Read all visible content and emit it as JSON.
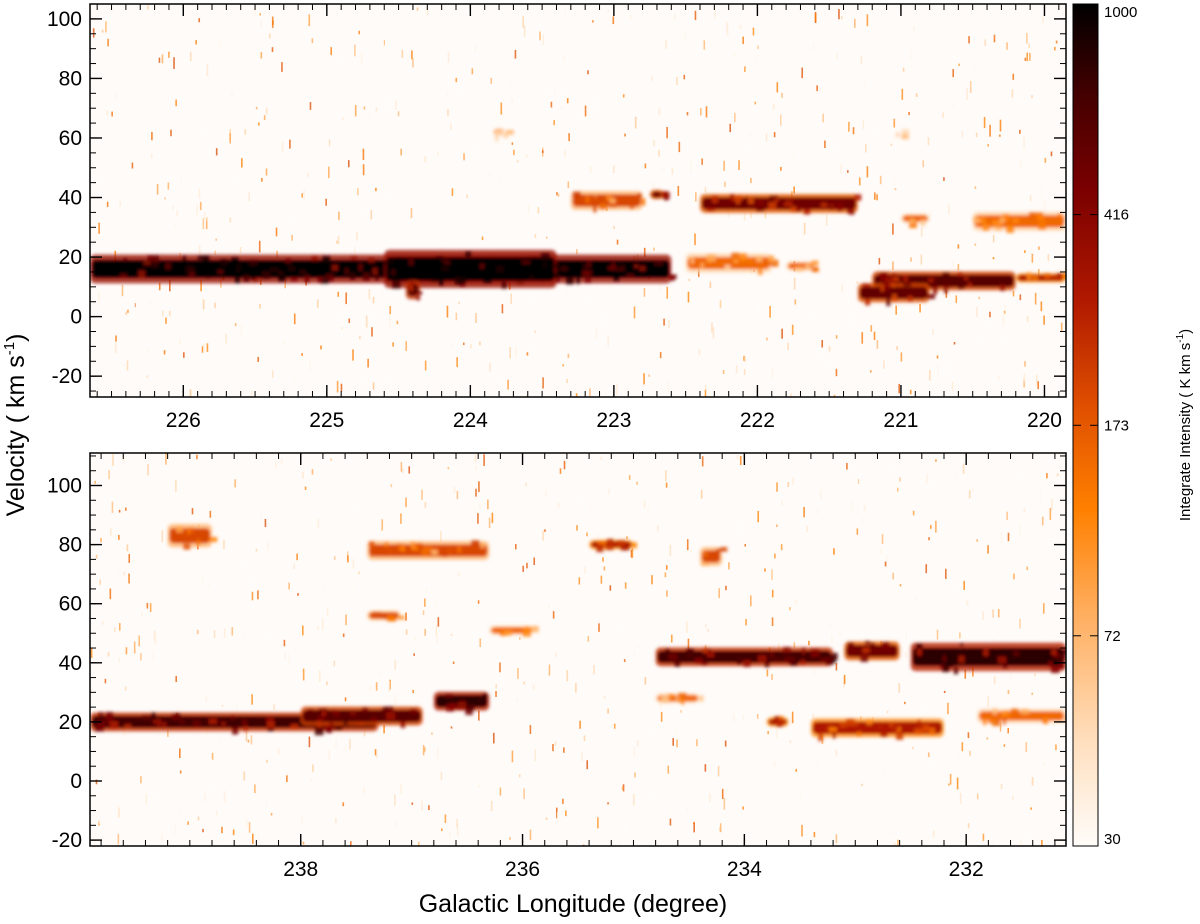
{
  "chart_data": [
    {
      "type": "heatmap",
      "panel": "top",
      "xlabel": "Galactic Longitude (degree)",
      "ylabel": "Velocity ( km s-1)",
      "xlim": [
        226.65,
        219.85
      ],
      "ylim": [
        -27,
        105
      ],
      "xticks": [
        226,
        225,
        224,
        223,
        222,
        221,
        220
      ],
      "yticks": [
        -20,
        0,
        20,
        40,
        60,
        80,
        100
      ],
      "emission_features": [
        {
          "l_range": [
            226.65,
            222.6
          ],
          "v_center": 16,
          "v_width": 6,
          "peak_intensity": 1000
        },
        {
          "l_range": [
            224.6,
            223.4
          ],
          "v_center": 16,
          "v_width": 8,
          "peak_intensity": 1000
        },
        {
          "l_range": [
            224.45,
            224.35
          ],
          "v_center": 9,
          "v_width": 4,
          "peak_intensity": 700
        },
        {
          "l_range": [
            222.5,
            221.9
          ],
          "v_center": 18,
          "v_width": 4,
          "peak_intensity": 150
        },
        {
          "l_range": [
            221.8,
            221.6
          ],
          "v_center": 17,
          "v_width": 2,
          "peak_intensity": 150
        },
        {
          "l_range": [
            223.3,
            222.8
          ],
          "v_center": 39,
          "v_width": 4,
          "peak_intensity": 200
        },
        {
          "l_range": [
            222.75,
            222.65
          ],
          "v_center": 41,
          "v_width": 2,
          "peak_intensity": 500
        },
        {
          "l_range": [
            222.4,
            221.3
          ],
          "v_center": 38,
          "v_width": 4,
          "peak_intensity": 500
        },
        {
          "l_range": [
            221.2,
            220.2
          ],
          "v_center": 12,
          "v_width": 4,
          "peak_intensity": 600
        },
        {
          "l_range": [
            221.3,
            220.8
          ],
          "v_center": 8,
          "v_width": 4,
          "peak_intensity": 550
        },
        {
          "l_range": [
            220.5,
            219.85
          ],
          "v_center": 32,
          "v_width": 4,
          "peak_intensity": 150
        },
        {
          "l_range": [
            221.0,
            220.8
          ],
          "v_center": 33,
          "v_width": 2,
          "peak_intensity": 150
        },
        {
          "l_range": [
            220.2,
            219.85
          ],
          "v_center": 13,
          "v_width": 2,
          "peak_intensity": 300
        },
        {
          "l_range": [
            223.85,
            223.75
          ],
          "v_center": 62,
          "v_width": 2,
          "peak_intensity": 100
        },
        {
          "l_range": [
            221.05,
            220.95
          ],
          "v_center": 61,
          "v_width": 2,
          "peak_intensity": 80
        }
      ]
    },
    {
      "type": "heatmap",
      "panel": "bottom",
      "xlabel": "Galactic Longitude (degree)",
      "ylabel": "Velocity ( km s-1)",
      "xlim": [
        239.9,
        231.1
      ],
      "ylim": [
        -22,
        111
      ],
      "xticks": [
        238,
        236,
        234,
        232
      ],
      "yticks": [
        -20,
        0,
        20,
        40,
        60,
        80,
        100
      ],
      "emission_features": [
        {
          "l_range": [
            239.9,
            237.3
          ],
          "v_center": 20,
          "v_width": 4,
          "peak_intensity": 700
        },
        {
          "l_range": [
            238.0,
            236.9
          ],
          "v_center": 22,
          "v_width": 4,
          "peak_intensity": 600
        },
        {
          "l_range": [
            236.8,
            236.3
          ],
          "v_center": 27,
          "v_width": 4,
          "peak_intensity": 800
        },
        {
          "l_range": [
            239.2,
            238.8
          ],
          "v_center": 83,
          "v_width": 5,
          "peak_intensity": 200
        },
        {
          "l_range": [
            237.4,
            236.3
          ],
          "v_center": 78,
          "v_width": 4,
          "peak_intensity": 200
        },
        {
          "l_range": [
            235.4,
            235.0
          ],
          "v_center": 80,
          "v_width": 2,
          "peak_intensity": 300
        },
        {
          "l_range": [
            234.4,
            234.2
          ],
          "v_center": 76,
          "v_width": 4,
          "peak_intensity": 200
        },
        {
          "l_range": [
            237.4,
            237.1
          ],
          "v_center": 56,
          "v_width": 2,
          "peak_intensity": 200
        },
        {
          "l_range": [
            236.3,
            235.9
          ],
          "v_center": 51,
          "v_width": 2,
          "peak_intensity": 150
        },
        {
          "l_range": [
            234.8,
            233.2
          ],
          "v_center": 42,
          "v_width": 4,
          "peak_intensity": 700
        },
        {
          "l_range": [
            233.1,
            232.6
          ],
          "v_center": 44,
          "v_width": 4,
          "peak_intensity": 500
        },
        {
          "l_range": [
            232.5,
            231.1
          ],
          "v_center": 42,
          "v_width": 6,
          "peak_intensity": 800
        },
        {
          "l_range": [
            234.8,
            234.4
          ],
          "v_center": 28,
          "v_width": 2,
          "peak_intensity": 150
        },
        {
          "l_range": [
            233.4,
            232.2
          ],
          "v_center": 18,
          "v_width": 4,
          "peak_intensity": 300
        },
        {
          "l_range": [
            233.8,
            233.6
          ],
          "v_center": 20,
          "v_width": 2,
          "peak_intensity": 300
        },
        {
          "l_range": [
            231.9,
            231.1
          ],
          "v_center": 22,
          "v_width": 3,
          "peak_intensity": 150
        }
      ]
    }
  ],
  "colorbar": {
    "title": "Integrate Intensity ( K km s-1)",
    "ticks": [
      "1000",
      "416",
      "173",
      "72",
      "30"
    ],
    "scale": "log",
    "range": [
      30,
      1000
    ]
  },
  "colors": {
    "background": "#fffbf8",
    "colormap": [
      "#fffcf9",
      "#ffe0c0",
      "#ffac5c",
      "#ff8000",
      "#e05000",
      "#b01800",
      "#7a0000",
      "#400000",
      "#000000"
    ]
  }
}
